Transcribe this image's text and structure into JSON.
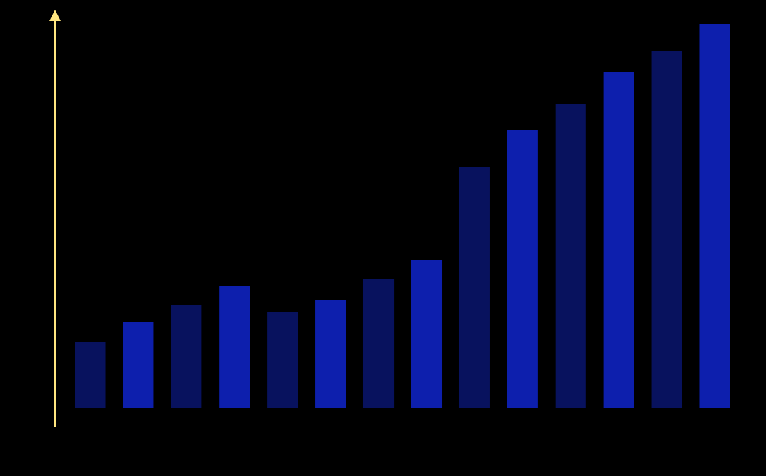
{
  "chart_data": {
    "type": "bar",
    "categories": [
      null,
      null,
      null,
      null,
      null,
      null,
      null,
      null,
      null,
      null,
      null,
      null,
      null,
      null
    ],
    "values": [
      95,
      124,
      148,
      175,
      139,
      156,
      186,
      213,
      346,
      399,
      437,
      482,
      513,
      552
    ],
    "colors": [
      "#08125e",
      "#0d1fad",
      "#08125e",
      "#0d1fad",
      "#08125e",
      "#0d1fad",
      "#08125e",
      "#0d1fad",
      "#08125e",
      "#0d1fad",
      "#08125e",
      "#0d1fad",
      "#08125e",
      "#0d1fad"
    ],
    "ylim": [
      0,
      570
    ]
  }
}
